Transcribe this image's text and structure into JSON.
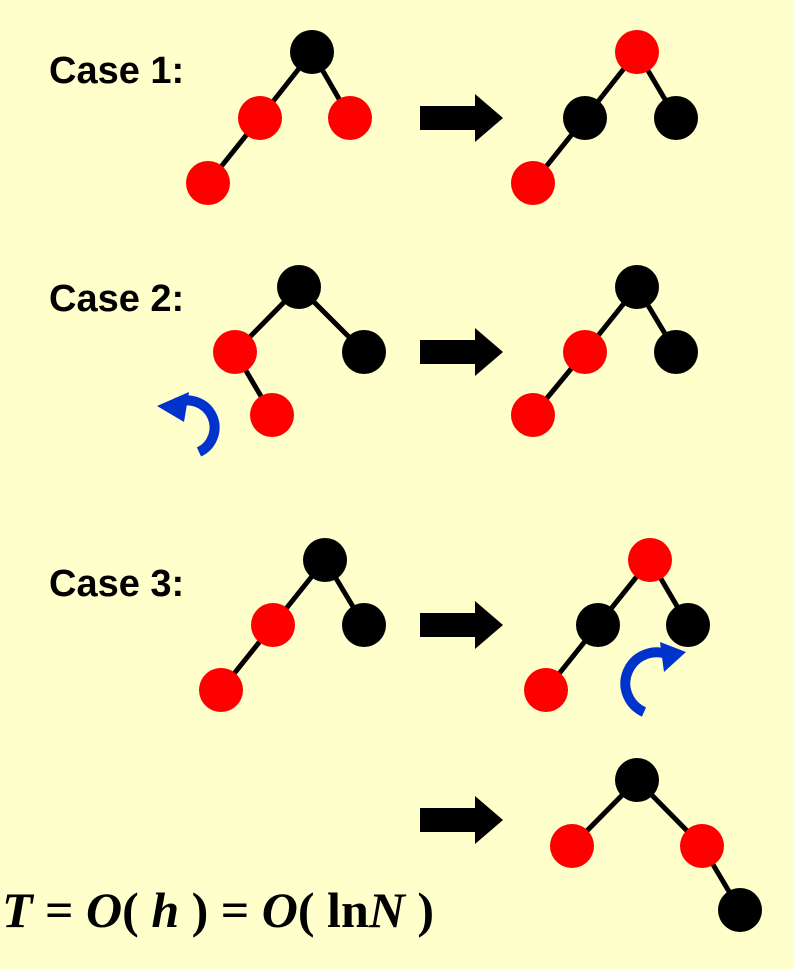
{
  "colors": {
    "background": "#FFFFCC",
    "red_node": "#FF0000",
    "black_node": "#000000",
    "edge": "#000000",
    "arrow": "#000000",
    "rotation_arrow": "#0033CC"
  },
  "cases": [
    {
      "label": "Case 1:",
      "before": {
        "nodes": [
          "black",
          "red",
          "red",
          "red"
        ]
      },
      "after": {
        "nodes": [
          "red",
          "black",
          "black",
          "red"
        ]
      }
    },
    {
      "label": "Case 2:",
      "before": {
        "nodes": [
          "black",
          "red",
          "black",
          "red"
        ],
        "rotation": "counter-clockwise"
      },
      "after": {
        "nodes": [
          "black",
          "red",
          "black",
          "red"
        ]
      }
    },
    {
      "label": "Case 3:",
      "before": {
        "nodes": [
          "black",
          "red",
          "black",
          "red"
        ]
      },
      "after": {
        "nodes": [
          "red",
          "black",
          "black",
          "red"
        ],
        "rotation": "clockwise"
      },
      "final": {
        "nodes": [
          "black",
          "red",
          "red",
          "black"
        ]
      }
    }
  ],
  "formula": {
    "T": "T",
    "eq": " = ",
    "O1": "O",
    "paren_open": "( ",
    "h": "h",
    "paren_close": " )",
    "O2": "O",
    "ln": "ln",
    "N": "N"
  },
  "icons": [
    "right-arrow-icon",
    "rotate-ccw-icon",
    "rotate-cw-icon"
  ]
}
